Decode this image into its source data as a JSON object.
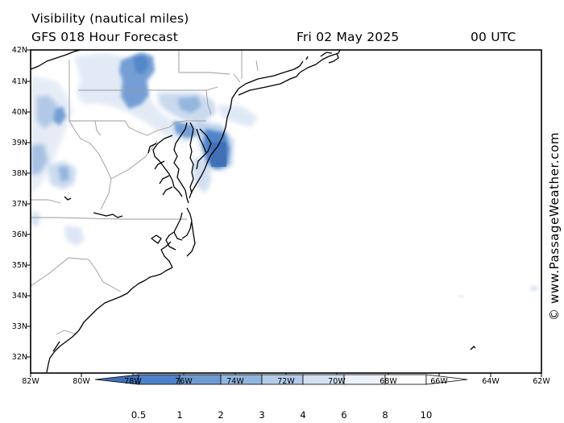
{
  "header": {
    "product": "Visibility (nautical miles)",
    "model": "GFS 018 Hour Forecast",
    "date": "Fri 02 May 2025",
    "time": "00 UTC"
  },
  "axes": {
    "lat_labels": [
      "42N",
      "41N",
      "40N",
      "39N",
      "38N",
      "37N",
      "36N",
      "35N",
      "34N",
      "33N",
      "32N"
    ],
    "lon_labels": [
      "82W",
      "80W",
      "78W",
      "76W",
      "74W",
      "72W",
      "70W",
      "68W",
      "66W",
      "64W",
      "62W"
    ]
  },
  "credit": "© www.PassageWeather.com",
  "colorbar": {
    "labels": [
      "0.5",
      "1",
      "2",
      "3",
      "4",
      "6",
      "8",
      "10"
    ],
    "colors": [
      "#3f71bb",
      "#4c82c8",
      "#6f9bd3",
      "#92b5de",
      "#b4cbe8",
      "#d3e0f2",
      "#ecf1fa",
      "#ffffff"
    ]
  },
  "map": {
    "land_color": "#ffffff",
    "state_border_color": "#9a9a9a",
    "coastline_color": "#000000"
  }
}
